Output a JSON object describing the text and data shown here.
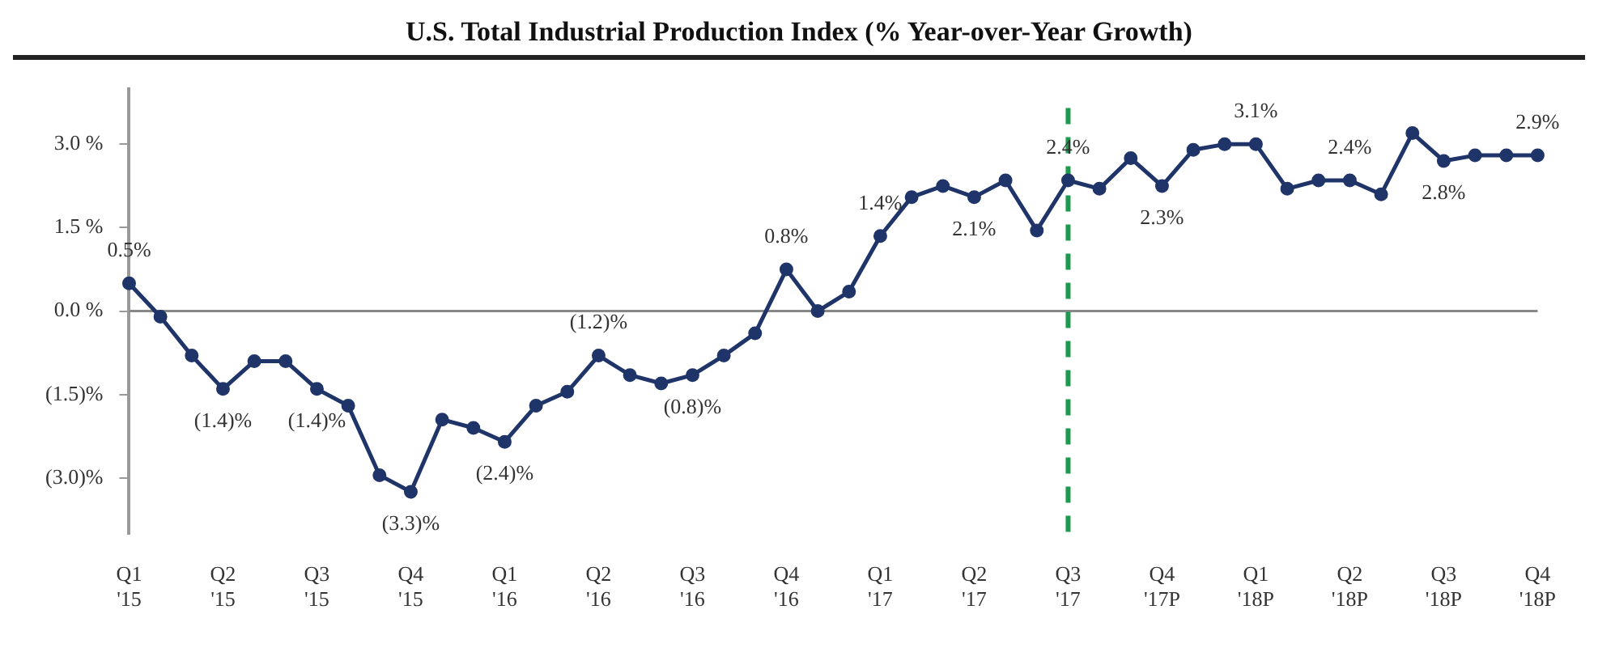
{
  "chart_data": {
    "type": "line",
    "title": "U.S. Total Industrial Production Index (% Year-over-Year Growth)",
    "categories": [
      "Q1 '15",
      null,
      null,
      "Q2 '15",
      null,
      null,
      "Q3 '15",
      null,
      null,
      "Q4 '15",
      null,
      null,
      "Q1 '16",
      null,
      null,
      "Q2 '16",
      null,
      null,
      "Q3 '16",
      null,
      null,
      "Q4 '16",
      null,
      null,
      "Q1 '17",
      null,
      null,
      "Q2 '17",
      null,
      null,
      "Q3 '17",
      null,
      null,
      "Q4 '17P",
      null,
      null,
      "Q1 '18P",
      null,
      null,
      "Q2 '18P",
      null,
      null,
      "Q3 '18P",
      null,
      null,
      "Q4 '18P"
    ],
    "series": [
      {
        "color": "#1f3468",
        "values": [
          0.5,
          -0.1,
          -0.8,
          -1.4,
          -0.9,
          -0.9,
          -1.4,
          -1.7,
          -2.95,
          -3.25,
          -1.95,
          -2.1,
          -2.35,
          -1.7,
          -1.45,
          -0.8,
          -1.15,
          -1.3,
          -1.15,
          -0.8,
          -0.4,
          0.75,
          0.0,
          0.35,
          1.35,
          2.05,
          2.25,
          2.05,
          2.35,
          1.45,
          2.35,
          2.2,
          2.75,
          2.25,
          2.9,
          3.0,
          3.0,
          2.2,
          2.35,
          2.35,
          2.1,
          3.2,
          2.7,
          2.8,
          2.8,
          2.8
        ]
      }
    ],
    "ylim": [
      -4.0,
      4.0
    ],
    "yticks": [
      {
        "value": 3,
        "label": "3.0 %"
      },
      {
        "value": 1.5,
        "label": "1.5 %"
      },
      {
        "value": 0,
        "label": "0.0 %"
      },
      {
        "value": -1.5,
        "label": "(1.5)%"
      },
      {
        "value": -3,
        "label": "(3.0)%"
      }
    ],
    "grid": false,
    "legend": false,
    "marker": "circle",
    "line_style": "solid",
    "ref_lines": [
      {
        "axis": "y",
        "value": 0,
        "color": "#888888",
        "line_style": "solid"
      },
      {
        "axis": "x",
        "value": "Q3 '17",
        "color": "#1e9a4e",
        "line_style": "dashed"
      }
    ],
    "annotations": [
      "0.5%",
      "(1.4)%",
      "(1.4)%",
      "(3.3)%",
      "(2.4)%",
      "(1.2)%",
      "(0.8)%",
      "0.8%",
      "1.4%",
      "2.1%",
      "2.4%",
      "2.3%",
      "3.1%",
      "2.4%",
      "2.8%",
      "2.9%"
    ]
  }
}
